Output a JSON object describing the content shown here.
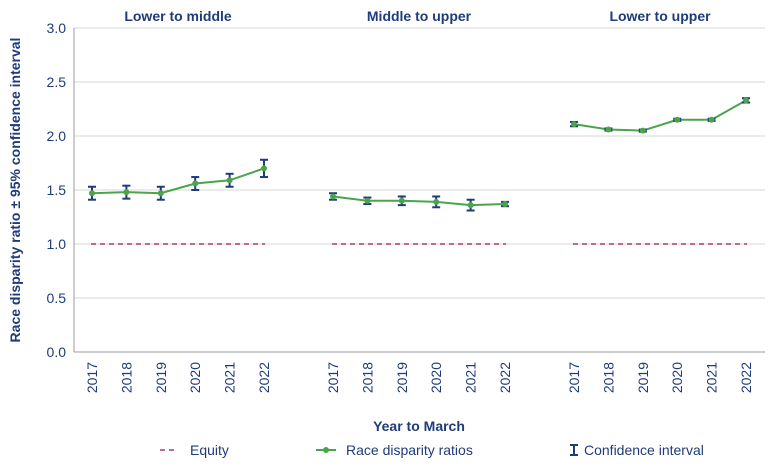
{
  "colors": {
    "text": "#1f3b7a",
    "axis": "#9e9e9e",
    "grid": "#d7d7d7",
    "line": "#4aa54a",
    "error": "#1f3b7a",
    "equity": "#a43c6e"
  },
  "chart_data": {
    "type": "line",
    "title": "",
    "xlabel": "Year to March",
    "ylabel": "Race disparity ratio ± 95% confidence interval",
    "ylim": [
      0,
      3
    ],
    "yticks": [
      "0.0",
      "0.5",
      "1.0",
      "1.5",
      "2.0",
      "2.5",
      "3.0"
    ],
    "grid": "horizontal",
    "legend_position": "bottom",
    "equity_value": 1.0,
    "panels": [
      {
        "title": "Lower to middle",
        "x": [
          "2017",
          "2018",
          "2019",
          "2020",
          "2021",
          "2022"
        ],
        "values": [
          1.47,
          1.48,
          1.47,
          1.56,
          1.59,
          1.7
        ],
        "ci_low": [
          1.41,
          1.42,
          1.41,
          1.5,
          1.53,
          1.62
        ],
        "ci_high": [
          1.53,
          1.54,
          1.53,
          1.62,
          1.65,
          1.78
        ]
      },
      {
        "title": "Middle to upper",
        "x": [
          "2017",
          "2018",
          "2019",
          "2020",
          "2021",
          "2022"
        ],
        "values": [
          1.44,
          1.4,
          1.4,
          1.39,
          1.36,
          1.37
        ],
        "ci_low": [
          1.41,
          1.37,
          1.36,
          1.34,
          1.31,
          1.35
        ],
        "ci_high": [
          1.47,
          1.43,
          1.44,
          1.44,
          1.41,
          1.39
        ]
      },
      {
        "title": "Lower to upper",
        "x": [
          "2017",
          "2018",
          "2019",
          "2020",
          "2021",
          "2022"
        ],
        "values": [
          2.11,
          2.06,
          2.05,
          2.15,
          2.15,
          2.33
        ],
        "ci_low": [
          2.09,
          2.05,
          2.04,
          2.14,
          2.14,
          2.31
        ],
        "ci_high": [
          2.13,
          2.07,
          2.06,
          2.16,
          2.16,
          2.35
        ]
      }
    ],
    "legend": [
      {
        "label": "Equity",
        "kind": "equity"
      },
      {
        "label": "Race disparity ratios",
        "kind": "line"
      },
      {
        "label": "Confidence interval",
        "kind": "ci"
      }
    ]
  }
}
